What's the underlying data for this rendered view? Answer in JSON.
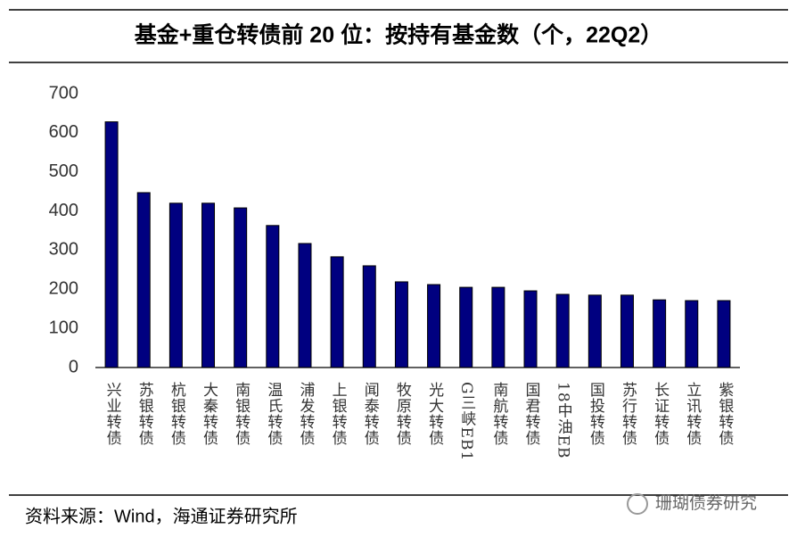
{
  "chart_data": {
    "type": "bar",
    "title": "基金+重仓转债前 20 位：按持有基金数（个，22Q2）",
    "categories": [
      "兴业转债",
      "苏银转债",
      "杭银转债",
      "大秦转债",
      "南银转债",
      "温氏转债",
      "浦发转债",
      "上银转债",
      "闻泰转债",
      "牧原转债",
      "光大转债",
      "G三峡EB1",
      "南航转债",
      "国君转债",
      "18中油EB",
      "国投转债",
      "苏行转债",
      "长证转债",
      "立讯转债",
      "紫银转债"
    ],
    "values": [
      628,
      447,
      420,
      420,
      408,
      363,
      317,
      283,
      260,
      219,
      212,
      205,
      205,
      196,
      187,
      185,
      185,
      173,
      171,
      171
    ],
    "color": "#000080",
    "ylim": [
      0,
      700
    ],
    "yticks": [
      0,
      100,
      200,
      300,
      400,
      500,
      600,
      700
    ],
    "grid": false
  },
  "source": "资料来源：Wind，海通证券研究所",
  "watermark": "珊瑚债券研究"
}
